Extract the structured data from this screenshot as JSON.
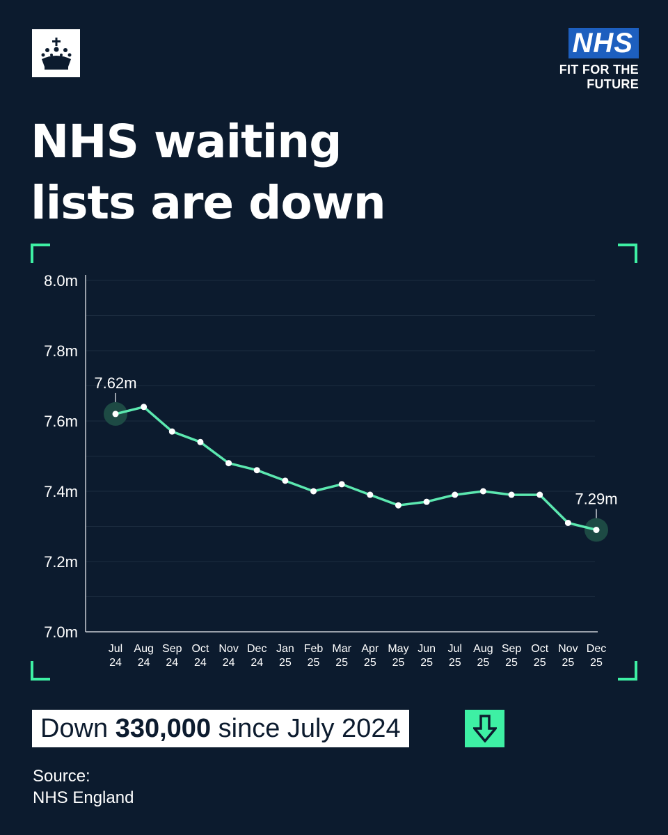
{
  "header": {
    "crest_icon": "crown-crest-icon",
    "nhs_logo": "NHS",
    "tagline_line1": "FIT FOR THE",
    "tagline_line2": "FUTURE"
  },
  "headline": {
    "line1": "NHS waiting",
    "line2": "lists are down"
  },
  "chart_data": {
    "type": "line",
    "title": "",
    "xlabel": "",
    "ylabel": "",
    "ylim": [
      7.0,
      8.0
    ],
    "y_ticks": [
      {
        "value": 8.0,
        "label": "8.0m"
      },
      {
        "value": 7.8,
        "label": "7.8m"
      },
      {
        "value": 7.6,
        "label": "7.6m"
      },
      {
        "value": 7.4,
        "label": "7.4m"
      },
      {
        "value": 7.2,
        "label": "7.2m"
      },
      {
        "value": 7.0,
        "label": "7.0m"
      }
    ],
    "grid": true,
    "categories": [
      [
        "Jul",
        "24"
      ],
      [
        "Aug",
        "24"
      ],
      [
        "Sep",
        "24"
      ],
      [
        "Oct",
        "24"
      ],
      [
        "Nov",
        "24"
      ],
      [
        "Dec",
        "24"
      ],
      [
        "Jan",
        "25"
      ],
      [
        "Feb",
        "25"
      ],
      [
        "Mar",
        "25"
      ],
      [
        "Apr",
        "25"
      ],
      [
        "May",
        "25"
      ],
      [
        "Jun",
        "25"
      ],
      [
        "Jul",
        "25"
      ],
      [
        "Aug",
        "25"
      ],
      [
        "Sep",
        "25"
      ],
      [
        "Oct",
        "25"
      ],
      [
        "Nov",
        "25"
      ],
      [
        "Dec",
        "25"
      ]
    ],
    "series": [
      {
        "values": [
          7.62,
          7.64,
          7.57,
          7.54,
          7.48,
          7.46,
          7.43,
          7.4,
          7.42,
          7.39,
          7.36,
          7.37,
          7.39,
          7.4,
          7.39,
          7.39,
          7.31,
          7.29
        ]
      }
    ],
    "annotations": [
      {
        "index": 0,
        "label": "7.62m"
      },
      {
        "index": 17,
        "label": "7.29m"
      }
    ],
    "colors": {
      "line": "#5ce8b0",
      "marker": "#ffffff",
      "highlight": "#1d4a44",
      "corners": "#3ef0a4",
      "axis": "#c8ccd4",
      "grid": "#1c2c40"
    }
  },
  "callout": {
    "prefix": "Down ",
    "amount": "330,000",
    "suffix": " since July 2024",
    "arrow_icon": "down-arrow-icon",
    "arrow_color": "#3ef0a4"
  },
  "source": {
    "line1": "Source:",
    "line2": "NHS England"
  }
}
